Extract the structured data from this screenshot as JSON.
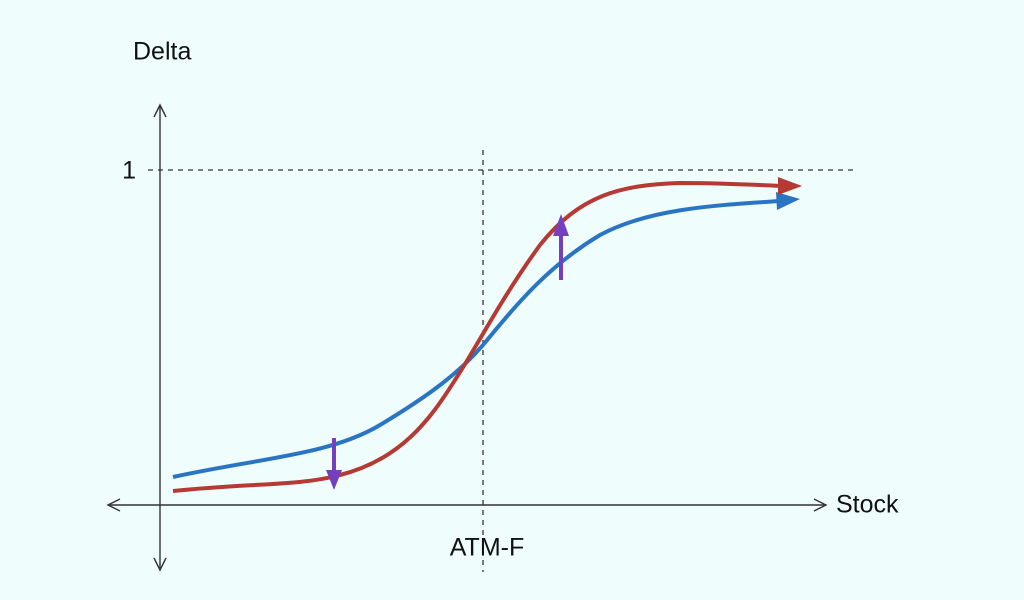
{
  "labels": {
    "y_axis": "Delta",
    "y_tick": "1",
    "x_axis": "Stock",
    "x_marker": "ATM-F"
  }
}
